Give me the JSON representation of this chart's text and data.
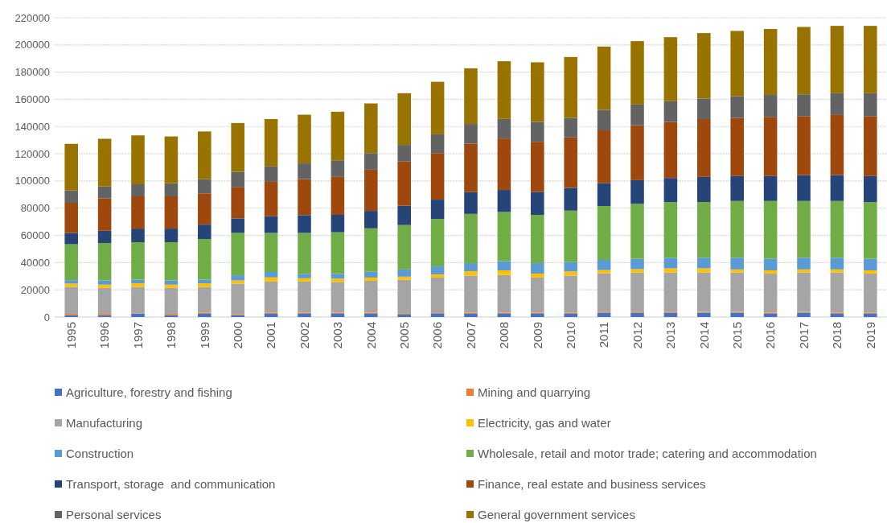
{
  "chart_data": {
    "type": "bar",
    "stacked": true,
    "grid": "y",
    "legend": "bottom",
    "categories": [
      "1995",
      "1996",
      "1997",
      "1998",
      "1999",
      "2000",
      "2001",
      "2002",
      "2003",
      "2004",
      "2005",
      "2006",
      "2007",
      "2008",
      "2009",
      "2010",
      "2011",
      "2012",
      "2013",
      "2014",
      "2015",
      "2016",
      "2017",
      "2018",
      "2019"
    ],
    "ylim": [
      0,
      220000
    ],
    "yticks": [
      0,
      20000,
      40000,
      60000,
      80000,
      100000,
      120000,
      140000,
      160000,
      180000,
      200000,
      220000
    ],
    "series": [
      {
        "name": "Agriculture, forestry and fishing",
        "color": "#4472c4",
        "values": [
          1400,
          1400,
          2400,
          1400,
          2400,
          1400,
          2400,
          2400,
          2400,
          2400,
          1800,
          2400,
          2400,
          2400,
          2400,
          2400,
          3200,
          3200,
          3200,
          3200,
          3200,
          2400,
          3200,
          2400,
          2400
        ]
      },
      {
        "name": "Mining and quarrying",
        "color": "#ed7d31",
        "values": [
          1000,
          1000,
          400,
          1000,
          800,
          800,
          800,
          800,
          800,
          800,
          600,
          600,
          800,
          800,
          800,
          800,
          800,
          800,
          800,
          600,
          600,
          800,
          600,
          800,
          800
        ]
      },
      {
        "name": "Manufacturing",
        "color": "#a5a5a5",
        "values": [
          19800,
          19000,
          19400,
          19000,
          19000,
          22400,
          22900,
          22900,
          22600,
          23400,
          25000,
          26000,
          27300,
          27700,
          25800,
          27300,
          28100,
          28700,
          28700,
          28900,
          28900,
          28700,
          28900,
          29500,
          28700
        ]
      },
      {
        "name": "Electricity, gas and water",
        "color": "#ffc000",
        "values": [
          2400,
          2400,
          2600,
          2400,
          2600,
          2300,
          3000,
          2400,
          2400,
          2400,
          2300,
          2300,
          3200,
          3400,
          2900,
          3000,
          2400,
          2500,
          3100,
          3100,
          2300,
          2400,
          2300,
          2300,
          2400
        ]
      },
      {
        "name": "Construction",
        "color": "#5b9bd5",
        "values": [
          2500,
          3100,
          2700,
          3100,
          2700,
          3800,
          4000,
          3000,
          3500,
          4300,
          5300,
          5900,
          5900,
          6800,
          7700,
          6900,
          7500,
          7600,
          7800,
          7800,
          8600,
          8500,
          8600,
          8600,
          8500
        ]
      },
      {
        "name": "Wholesale, retail and motor trade; catering and accommodation",
        "color": "#70ad47",
        "values": [
          26400,
          27400,
          27500,
          28100,
          29700,
          31100,
          28700,
          30300,
          30600,
          31900,
          32600,
          34900,
          36200,
          36100,
          35500,
          37800,
          39600,
          40400,
          40900,
          40900,
          41700,
          42500,
          41700,
          41700,
          41700
        ]
      },
      {
        "name": "Transport, storage  and communication",
        "color": "#264478",
        "values": [
          8300,
          9100,
          10000,
          10000,
          10700,
          10700,
          12300,
          13100,
          12800,
          12800,
          14200,
          14200,
          16000,
          16200,
          16700,
          16700,
          16800,
          17400,
          17700,
          18500,
          18300,
          18300,
          19000,
          19000,
          19100
        ]
      },
      {
        "name": "Finance, real estate and business services",
        "color": "#9e480e",
        "values": [
          22200,
          23700,
          23700,
          23700,
          23000,
          22800,
          25300,
          26500,
          27900,
          30300,
          32500,
          34200,
          35700,
          37800,
          37000,
          37100,
          38800,
          40400,
          41200,
          42500,
          42700,
          43500,
          43400,
          44200,
          44100
        ]
      },
      {
        "name": "Personal services",
        "color": "#636363",
        "values": [
          9000,
          8900,
          8900,
          9700,
          10500,
          11400,
          11300,
          11500,
          12200,
          12200,
          12200,
          13800,
          14400,
          14400,
          14600,
          14400,
          15100,
          15200,
          15200,
          15100,
          16100,
          16100,
          16000,
          16000,
          16800
        ]
      },
      {
        "name": "General government services",
        "color": "#997300",
        "values": [
          34300,
          35000,
          35900,
          34300,
          35000,
          35900,
          34800,
          35800,
          35700,
          36500,
          38000,
          38600,
          40900,
          42400,
          43800,
          44700,
          46500,
          46600,
          47100,
          48100,
          47900,
          48500,
          49500,
          49500,
          49500
        ]
      }
    ]
  }
}
